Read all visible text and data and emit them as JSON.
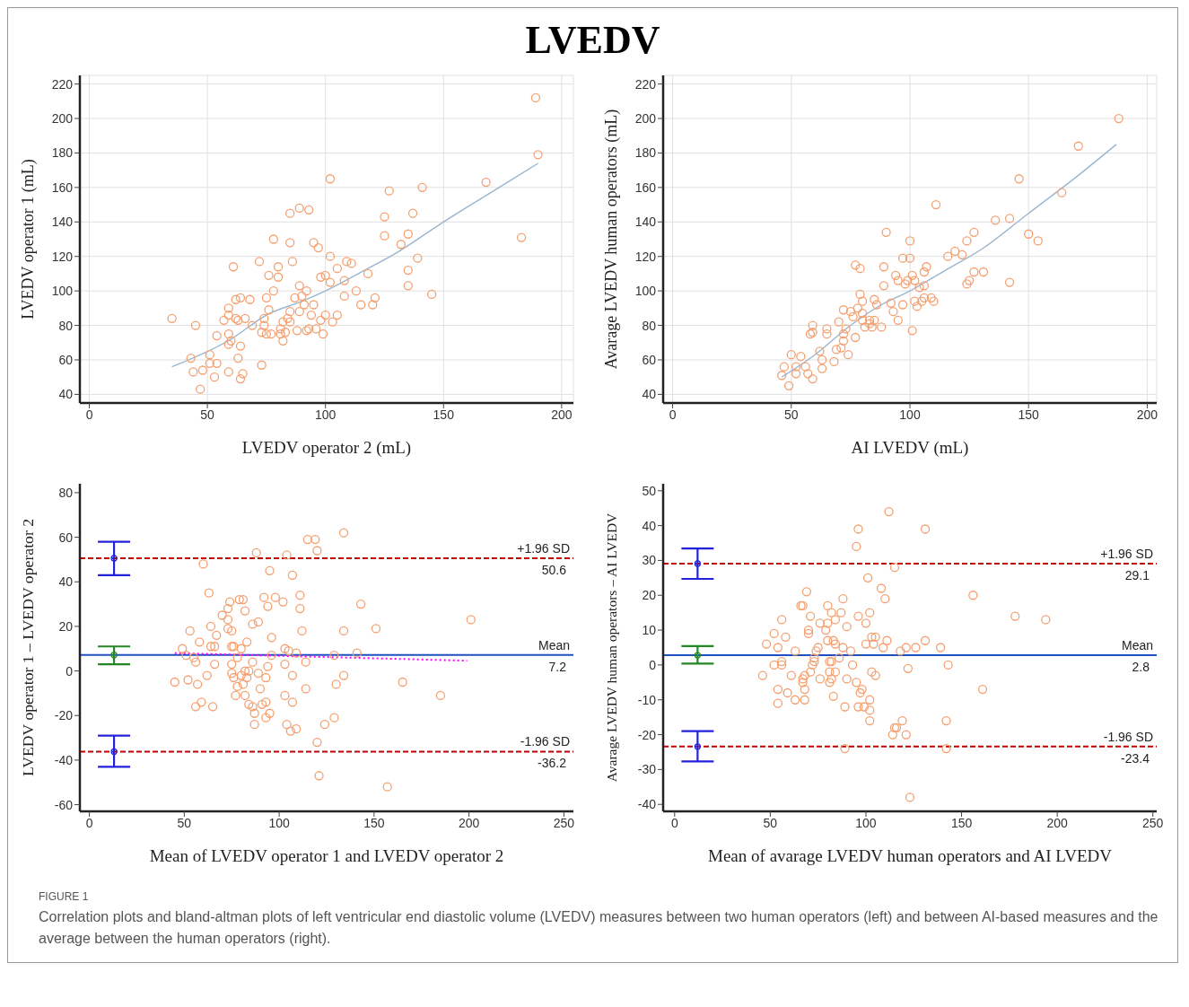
{
  "chart_data": [
    {
      "type": "scatter",
      "title": "LVEDV",
      "xlabel": "LVEDV operator 2 (mL)",
      "ylabel": "LVEDV operator 1 (mL)",
      "xlim": [
        -4,
        205
      ],
      "ylim": [
        35,
        225
      ],
      "xticks": [
        0,
        50,
        100,
        150,
        200
      ],
      "yticks": [
        40,
        60,
        80,
        100,
        120,
        140,
        160,
        180,
        200,
        220
      ],
      "grid": true,
      "series": [
        {
          "type": "scatter",
          "color": "#f4a070",
          "marker": "circle",
          "x": [
            35,
            43,
            44,
            45,
            48,
            47,
            51,
            51,
            53,
            54,
            54,
            59,
            59,
            57,
            59,
            60,
            59,
            59,
            61,
            62,
            63,
            62,
            64,
            63,
            64,
            65,
            64,
            66,
            68,
            69,
            72,
            73,
            73,
            74,
            74,
            75,
            75,
            76,
            77,
            78,
            76,
            78,
            80,
            80,
            81,
            81,
            82,
            82,
            83,
            84,
            85,
            85,
            85,
            85,
            86,
            87,
            88,
            89,
            89,
            89,
            90,
            91,
            92,
            92,
            93,
            93,
            95,
            95,
            94,
            97,
            96,
            98,
            98,
            99,
            100,
            100,
            102,
            102,
            102,
            103,
            105,
            105,
            108,
            108,
            109,
            111,
            113,
            115,
            118,
            120,
            121,
            125,
            125,
            127,
            132,
            135,
            135,
            135,
            137,
            139,
            141,
            145,
            168,
            183,
            189,
            190
          ],
          "values": [
            84,
            61,
            53,
            80,
            54,
            43,
            63,
            58,
            50,
            74,
            58,
            90,
            86,
            83,
            75,
            71,
            69,
            53,
            114,
            84,
            83,
            95,
            96,
            61,
            68,
            52,
            49,
            84,
            95,
            80,
            117,
            57,
            76,
            80,
            84,
            96,
            75,
            109,
            75,
            100,
            89,
            130,
            114,
            108,
            78,
            75,
            82,
            71,
            76,
            84,
            88,
            82,
            145,
            128,
            117,
            96,
            77,
            103,
            88,
            148,
            97,
            92,
            100,
            77,
            147,
            78,
            128,
            92,
            86,
            125,
            78,
            108,
            83,
            75,
            109,
            86,
            105,
            165,
            120,
            82,
            113,
            86,
            106,
            97,
            117,
            116,
            100,
            92,
            110,
            92,
            96,
            143,
            132,
            158,
            127,
            133,
            112,
            103,
            145,
            119,
            160,
            98,
            163,
            131,
            212,
            179
          ]
        },
        {
          "type": "line",
          "color": "#9bb5cf",
          "line_style": "solid",
          "marker": "none",
          "x": [
            35,
            60,
            75,
            90,
            100,
            118,
            130,
            150,
            170,
            190
          ],
          "values": [
            56,
            72,
            86,
            94,
            100,
            113,
            122,
            140,
            157,
            174
          ]
        }
      ]
    },
    {
      "type": "scatter",
      "xlabel": "AI LVEDV (mL)",
      "ylabel": "Avarage LVEDV human operators (mL)",
      "xlim": [
        -4,
        204
      ],
      "ylim": [
        35,
        225
      ],
      "xticks": [
        0,
        50,
        100,
        150,
        200
      ],
      "yticks": [
        40,
        60,
        80,
        100,
        120,
        140,
        160,
        180,
        200,
        220
      ],
      "grid": true,
      "series": [
        {
          "type": "scatter",
          "color": "#f4a070",
          "marker": "circle",
          "x": [
            46,
            47,
            49,
            50,
            52,
            52,
            54,
            56,
            57,
            59,
            59,
            58,
            59,
            62,
            63,
            63,
            65,
            65,
            68,
            69,
            70,
            71,
            72,
            72,
            72,
            73,
            74,
            75,
            76,
            77,
            79,
            77,
            78,
            79,
            80,
            80,
            80,
            81,
            83,
            83,
            84,
            85,
            85,
            86,
            88,
            89,
            89,
            90,
            92,
            93,
            94,
            95,
            95,
            97,
            97,
            98,
            99,
            100,
            100,
            101,
            101,
            102,
            102,
            103,
            104,
            105,
            106,
            106,
            106,
            107,
            109,
            110,
            111,
            116,
            119,
            122,
            124,
            124,
            125,
            127,
            127,
            131,
            136,
            142,
            142,
            146,
            150,
            154,
            164,
            171,
            188
          ],
          "values": [
            51,
            56,
            45,
            63,
            56,
            52,
            62,
            56,
            52,
            49,
            80,
            75,
            76,
            65,
            60,
            55,
            78,
            75,
            59,
            66,
            82,
            67,
            89,
            75,
            71,
            78,
            63,
            88,
            85,
            115,
            113,
            73,
            90,
            98,
            94,
            83,
            87,
            79,
            81,
            83,
            79,
            95,
            83,
            92,
            79,
            114,
            103,
            134,
            93,
            88,
            109,
            106,
            83,
            119,
            92,
            104,
            106,
            129,
            119,
            109,
            77,
            106,
            94,
            91,
            102,
            94,
            103,
            111,
            96,
            114,
            96,
            94,
            150,
            120,
            123,
            121,
            129,
            104,
            106,
            134,
            111,
            111,
            141,
            142,
            105,
            165,
            133,
            129,
            157,
            184,
            200
          ]
        },
        {
          "type": "line",
          "color": "#9bb5cf",
          "line_style": "solid",
          "marker": "none",
          "x": [
            46,
            60,
            75,
            88,
            100,
            115,
            130,
            150,
            170,
            187
          ],
          "values": [
            50,
            63,
            80,
            92,
            100,
            112,
            124,
            145,
            166,
            185
          ]
        }
      ]
    },
    {
      "type": "scatter",
      "xlabel": "Mean of LVEDV operator 1 and LVEDV operator 2",
      "ylabel": "LVEDV operator 1 – LVEDV operator 2",
      "xlim": [
        -5,
        255
      ],
      "ylim": [
        -63,
        84
      ],
      "xticks": [
        0,
        50,
        100,
        150,
        200,
        250
      ],
      "yticks": [
        -60,
        -40,
        -20,
        0,
        20,
        40,
        60,
        80
      ],
      "series": [
        {
          "type": "scatter",
          "color": "#f4a070",
          "marker": "circle",
          "x": [
            45,
            49,
            51,
            52,
            53,
            55,
            56,
            57,
            56,
            58,
            59,
            60,
            62,
            63,
            64,
            64,
            65,
            66,
            66,
            67,
            70,
            73,
            73,
            73,
            74,
            75,
            75,
            75,
            75,
            76,
            76,
            77,
            78,
            78,
            79,
            80,
            80,
            81,
            81,
            82,
            82,
            82,
            83,
            83,
            84,
            84,
            86,
            86,
            87,
            87,
            86,
            88,
            89,
            89,
            90,
            91,
            92,
            93,
            93,
            94,
            93,
            94,
            95,
            95,
            96,
            96,
            98,
            102,
            103,
            103,
            103,
            104,
            104,
            105,
            106,
            107,
            107,
            107,
            109,
            109,
            111,
            111,
            112,
            114,
            114,
            115,
            119,
            120,
            120,
            121,
            124,
            129,
            129,
            130,
            134,
            134,
            134,
            141,
            143,
            151,
            157,
            165,
            185,
            201
          ],
          "values": [
            -5,
            10,
            7,
            -4,
            18,
            6,
            4,
            -6,
            -16,
            13,
            -14,
            48,
            -2,
            35,
            11,
            20,
            -16,
            11,
            3,
            16,
            25,
            28,
            19,
            23,
            31,
            3,
            18,
            11,
            -1,
            11,
            -3,
            -11,
            6,
            -7,
            32,
            10,
            -2,
            32,
            -6,
            27,
            0,
            -11,
            -3,
            13,
            0,
            -15,
            -16,
            4,
            -19,
            -24,
            21,
            53,
            -1,
            22,
            -8,
            -15,
            33,
            -21,
            -14,
            2,
            -3,
            29,
            45,
            -19,
            7,
            15,
            33,
            31,
            -11,
            10,
            3,
            -24,
            52,
            9,
            -27,
            43,
            -2,
            -14,
            -26,
            8,
            28,
            34,
            18,
            4,
            -8,
            59,
            59,
            -32,
            54,
            -47,
            -24,
            -21,
            7,
            -6,
            62,
            18,
            -2,
            8,
            30,
            19,
            -52,
            -5,
            -11,
            23
          ]
        },
        {
          "type": "line",
          "color": "#ff00ff",
          "line_style": "dotted",
          "marker": "none",
          "x": [
            45,
            199
          ],
          "values": [
            8,
            4.6
          ]
        },
        {
          "type": "scatter",
          "color": "#2222dd",
          "marker": "circle",
          "x": [
            13
          ],
          "values": [
            50.6
          ],
          "errors": [
            [
              43,
              58
            ]
          ]
        },
        {
          "type": "scatter",
          "color": "#228822",
          "marker": "circle",
          "x": [
            13
          ],
          "values": [
            7.2
          ],
          "errors": [
            [
              3,
              11
            ]
          ]
        },
        {
          "type": "scatter",
          "color": "#2222dd",
          "marker": "circle",
          "x": [
            13
          ],
          "values": [
            -36.2
          ],
          "errors": [
            [
              -43,
              -29
            ]
          ]
        }
      ],
      "ref_lines": [
        {
          "axis": "y",
          "value": 50.6,
          "label": "+1.96 SD",
          "color": "#c00000",
          "line_style": "dashed"
        },
        {
          "axis": "y",
          "value": 7.2,
          "label": "Mean",
          "color": "#2050c0",
          "line_style": "solid"
        },
        {
          "axis": "y",
          "value": -36.2,
          "label": "-1.96 SD",
          "color": "#c00000",
          "line_style": "dashed"
        }
      ],
      "annotations": [
        {
          "text": "50.6",
          "y": 50.6
        },
        {
          "text": "7.2",
          "y": 7.2
        },
        {
          "text": "-36.2",
          "y": -36.2
        }
      ]
    },
    {
      "type": "scatter",
      "xlabel": "Mean of avarage LVEDV human operators and AI LVEDV",
      "ylabel": "Avarage LVEDV human operators – AI LVEDV",
      "xlim": [
        -6,
        252
      ],
      "ylim": [
        -42,
        52
      ],
      "xticks": [
        0,
        50,
        100,
        150,
        200,
        250
      ],
      "yticks": [
        -40,
        -30,
        -20,
        -10,
        0,
        10,
        20,
        30,
        40,
        50
      ],
      "series": [
        {
          "type": "scatter",
          "color": "#f4a070",
          "marker": "circle",
          "x": [
            46,
            48,
            52,
            52,
            54,
            54,
            54,
            56,
            56,
            56,
            58,
            59,
            61,
            63,
            63,
            66,
            67,
            67,
            67,
            68,
            68,
            68,
            69,
            70,
            70,
            71,
            71,
            72,
            73,
            73,
            74,
            75,
            76,
            76,
            79,
            80,
            80,
            80,
            81,
            81,
            81,
            82,
            82,
            82,
            83,
            83,
            84,
            84,
            84,
            86,
            87,
            88,
            88,
            89,
            89,
            90,
            90,
            92,
            93,
            95,
            95,
            96,
            96,
            96,
            97,
            98,
            99,
            100,
            100,
            102,
            102,
            101,
            102,
            102,
            103,
            103,
            104,
            105,
            105,
            108,
            109,
            110,
            111,
            112,
            114,
            115,
            115,
            116,
            118,
            119,
            121,
            121,
            122,
            126,
            131,
            131,
            139,
            142,
            142,
            143,
            156,
            161,
            178,
            194,
            123
          ],
          "values": [
            -3,
            6,
            9,
            0,
            5,
            -7,
            -11,
            13,
            1,
            0,
            8,
            -8,
            -3,
            4,
            -10,
            17,
            17,
            -4,
            -5,
            -7,
            -10,
            -3,
            21,
            10,
            9,
            14,
            -2,
            0,
            1,
            2,
            4,
            5,
            -4,
            12,
            10,
            17,
            12,
            7,
            -2,
            -5,
            1,
            -4,
            15,
            1,
            7,
            -9,
            -2,
            13,
            6,
            2,
            15,
            19,
            5,
            -12,
            -24,
            11,
            -4,
            4,
            0,
            -5,
            34,
            39,
            14,
            -12,
            -8,
            -7,
            -12,
            12,
            6,
            -10,
            15,
            25,
            -13,
            -16,
            -2,
            8,
            6,
            8,
            -3,
            22,
            5,
            19,
            7,
            44,
            -20,
            28,
            -18,
            -18,
            4,
            -16,
            -20,
            5,
            -1,
            5,
            7,
            39,
            5,
            -16,
            -24,
            0,
            20,
            -7,
            14,
            13,
            -38
          ]
        },
        {
          "type": "scatter",
          "color": "#2222dd",
          "marker": "circle",
          "x": [
            12
          ],
          "values": [
            29.1
          ],
          "errors": [
            [
              24.7,
              33.4
            ]
          ]
        },
        {
          "type": "scatter",
          "color": "#228822",
          "marker": "circle",
          "x": [
            12
          ],
          "values": [
            2.8
          ],
          "errors": [
            [
              0.4,
              5.4
            ]
          ]
        },
        {
          "type": "scatter",
          "color": "#2222dd",
          "marker": "circle",
          "x": [
            12
          ],
          "values": [
            -23.4
          ],
          "errors": [
            [
              -27.7,
              -19
            ]
          ]
        }
      ],
      "ref_lines": [
        {
          "axis": "y",
          "value": 29.1,
          "label": "+1.96 SD",
          "color": "#c00000",
          "line_style": "dashed"
        },
        {
          "axis": "y",
          "value": 2.8,
          "label": "Mean",
          "color": "#2050c0",
          "line_style": "solid"
        },
        {
          "axis": "y",
          "value": -23.4,
          "label": "-1.96 SD",
          "color": "#c00000",
          "line_style": "dashed"
        }
      ],
      "annotations": [
        {
          "text": "29.1",
          "y": 29.1
        },
        {
          "text": "2.8",
          "y": 2.8
        },
        {
          "text": "-23.4",
          "y": -23.4
        },
        "FIGURE 1",
        "Correlation plots and bland-altman plots of left ventricular end diastolic volume (LVEDV) measures between two human operators (left) and between AI-based measures and the average between the human operators (right)."
      ]
    }
  ]
}
